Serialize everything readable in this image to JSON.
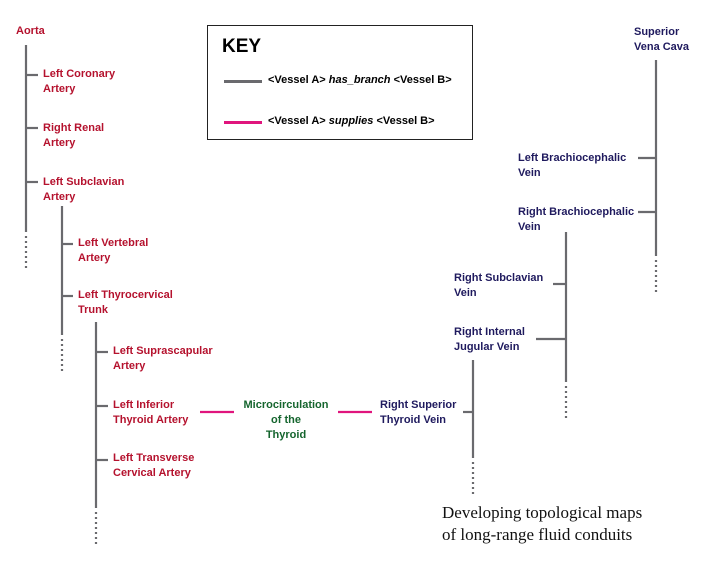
{
  "colors": {
    "has_branch": "#6a6a6e",
    "supplies": "#e0157d",
    "artery": "#b5122e",
    "vein": "#1f1a5e",
    "microcirculation": "#15652e"
  },
  "key": {
    "title": "KEY",
    "row1": {
      "a": "<Vessel A> ",
      "rel": "has_branch",
      "b": " <Vessel B>"
    },
    "row2": {
      "a": "<Vessel A> ",
      "rel": "supplies",
      "b": " <Vessel B>"
    }
  },
  "arteries": {
    "aorta": "Aorta",
    "left_coronary": [
      "Left Coronary",
      "Artery"
    ],
    "right_renal": [
      "Right Renal",
      "Artery"
    ],
    "left_subclavian": [
      "Left Subclavian",
      "Artery"
    ],
    "left_vertebral": [
      "Left Vertebral",
      "Artery"
    ],
    "left_thyrocervical": [
      "Left Thyrocervical",
      "Trunk"
    ],
    "left_suprascapular": [
      "Left Suprascapular",
      "Artery"
    ],
    "left_inferior_thyroid": [
      "Left Inferior",
      "Thyroid Artery"
    ],
    "left_transverse_cervical": [
      "Left Transverse",
      "Cervical Artery"
    ]
  },
  "microcirculation": [
    "Microcirculation",
    "of the",
    "Thyroid"
  ],
  "veins": {
    "superior_vena_cava": [
      "Superior",
      "Vena Cava"
    ],
    "left_brachiocephalic": [
      "Left Brachiocephalic",
      "Vein"
    ],
    "right_brachiocephalic": [
      "Right Brachiocephalic",
      "Vein"
    ],
    "right_subclavian": [
      "Right Subclavian",
      "Vein"
    ],
    "right_internal_jugular": [
      "Right Internal",
      "Jugular Vein"
    ],
    "right_superior_thyroid": [
      "Right Superior",
      "Thyroid Vein"
    ]
  },
  "caption": [
    "Developing topological maps",
    "of long-range fluid conduits"
  ]
}
